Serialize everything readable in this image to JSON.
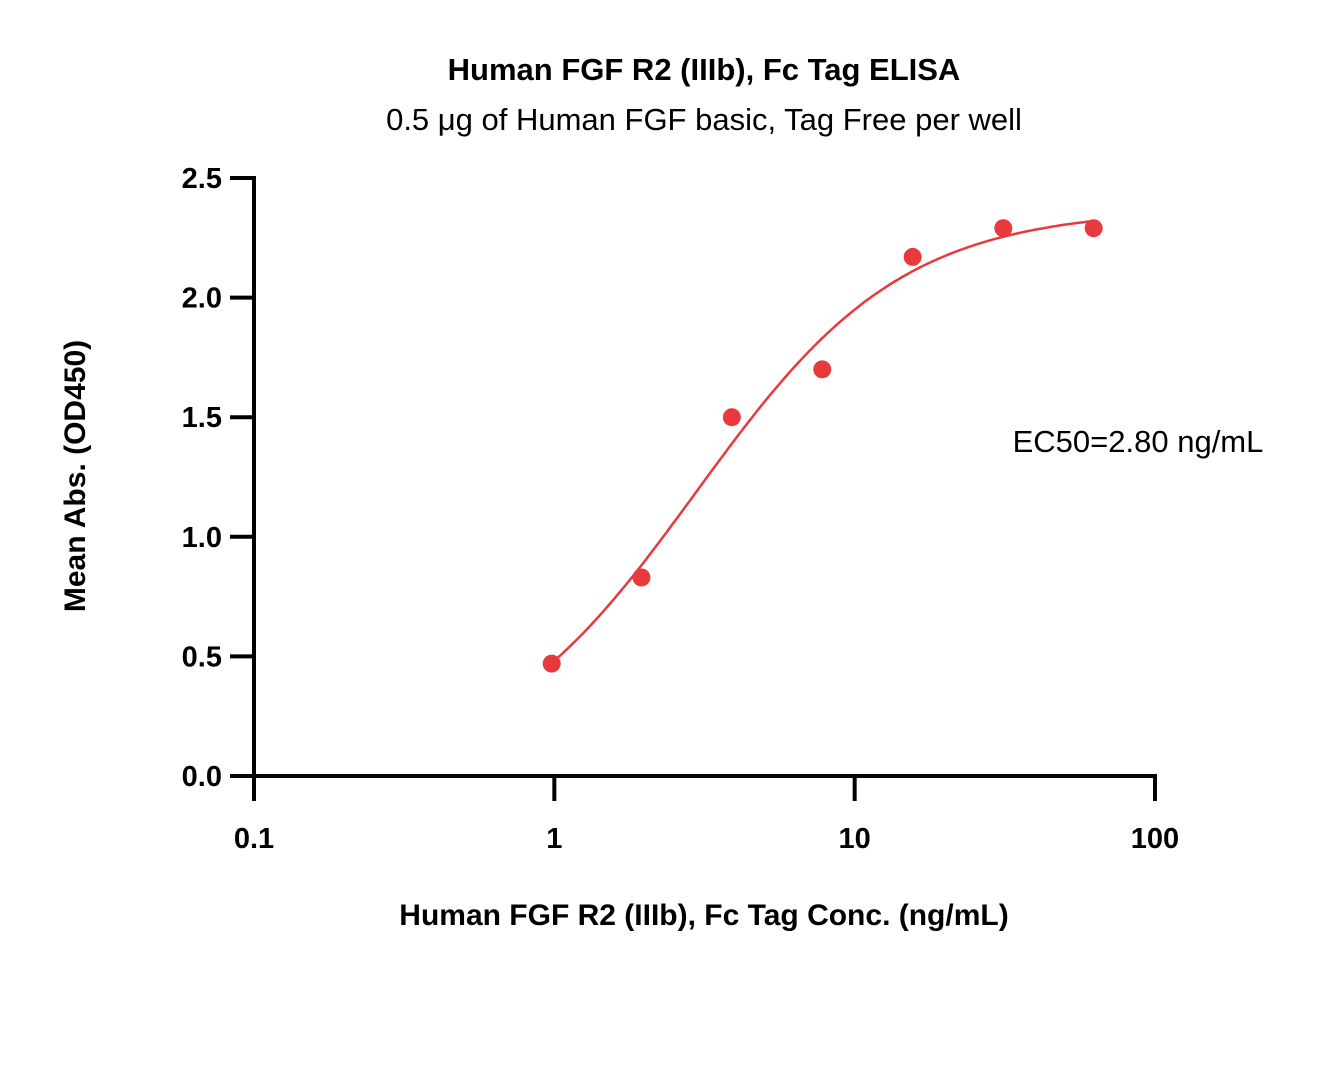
{
  "chart_data": {
    "type": "scatter",
    "title": "Human FGF R2 (IIIb), Fc Tag ELISA",
    "subtitle": "0.5 μg of Human FGF basic, Tag Free per well",
    "xlabel": "Human FGF R2 (IIIb), Fc Tag Conc. (ng/mL)",
    "ylabel": "Mean Abs. (OD450)",
    "xscale": "log",
    "xlim": [
      0.1,
      100
    ],
    "ylim": [
      0.0,
      2.5
    ],
    "x_ticks": [
      0.1,
      1,
      10,
      100
    ],
    "x_tick_labels": [
      "0.1",
      "1",
      "10",
      "100"
    ],
    "y_ticks": [
      0.0,
      0.5,
      1.0,
      1.5,
      2.0,
      2.5
    ],
    "y_tick_labels": [
      "0.0",
      "0.5",
      "1.0",
      "1.5",
      "2.0",
      "2.5"
    ],
    "grid": false,
    "series": [
      {
        "x": [
          0.98,
          1.95,
          3.9,
          7.8,
          15.6,
          31.25,
          62.5
        ],
        "y": [
          0.47,
          0.83,
          1.5,
          1.7,
          2.17,
          2.29,
          2.29
        ],
        "color": "#e8393f",
        "marker": "circle",
        "fit": "four-parameter logistic"
      }
    ],
    "annotations": [
      {
        "text": "EC50=2.80 ng/mL"
      }
    ]
  }
}
